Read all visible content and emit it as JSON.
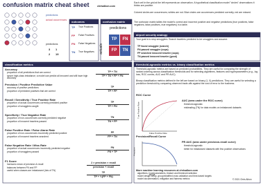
{
  "header": {
    "title": "confusion matrix cheat sheet",
    "site": "chrisalbon.com"
  },
  "intro": [
    "Each cell in the grid at the left represents an observation. A hypothetical classification model \"circles\" observations it thinks are positive.",
    "Colored circles are occurrences; whites are not. Blue circles are occurrences predicted correctly, red are missed.",
    "The confusion matrix tallies the model's correct and incorrect positive and negative predictions (true positives, false negatives, false positives, true negatives) in a table."
  ],
  "diagram": {
    "legend": [
      "predictions",
      "actual occurrences"
    ],
    "matrix_label": "predictions",
    "counts": [
      "3",
      "1",
      "2",
      "19"
    ]
  },
  "outcomes": {
    "title": "outcomes",
    "items": [
      {
        "abbr": "TP",
        "label": "True Positives"
      },
      {
        "abbr": "FP",
        "label": "False Positives"
      },
      {
        "abbr": "FN",
        "label": "False Negatives"
      },
      {
        "abbr": "TN",
        "label": "True Negatives"
      }
    ]
  },
  "confusion_matrix": {
    "title": "confusion matrix",
    "predictions": "predictions",
    "actuals": "actuals",
    "cells": [
      "TP",
      "FN",
      "FP",
      "TN"
    ]
  },
  "airport": {
    "title": "airport security analogy",
    "intro": "Your goal is to stop smugglers. Search travelers predicted to be smugglers and assume:",
    "items": [
      "TP found smuggler (search)",
      "FN passed smuggler (oops)",
      "FP searched innocent traveler (oops)",
      "TN passed innocent traveler (good)"
    ]
  },
  "metrics": {
    "title": "classification metrics",
    "rows": [
      {
        "name": "Accuracy",
        "bullets": [
          "proportion of all predictions that are correct",
          "ignore high-class imbalance; a model can predict all innocent and still have high accuracy"
        ],
        "numerator": "TP + TN",
        "denominator": "TP + TN + FP + FN"
      },
      {
        "name": "Precision / Positive Predictive Value",
        "bullets": [
          "accuracy of positive predictions",
          "proportion of predicted positives that are correct"
        ],
        "numerator": "TP",
        "denominator": "TP + FP"
      },
      {
        "name": "Recall / Sensitivity / True Positive Rate",
        "bullets": [
          "proportion of actual occurrences correctly predicted positive",
          "proportion of smugglers caught"
        ],
        "numerator": "TP",
        "denominator": "TP + FN"
      },
      {
        "name": "Specificity / True Negative Rate",
        "bullets": [
          "proportion of non-occurrences correctly predicted negative",
          "proportion of innocent travelers passed"
        ],
        "numerator": "TN",
        "denominator": "TN + FP"
      },
      {
        "name": "False Positive Rate / False Alarm Rate",
        "bullets": [
          "proportion of non-occurrences incorrectly predicted positive",
          "proportion of innocent travelers searched"
        ],
        "numerator": "FP",
        "denominator": "FP + TN"
      },
      {
        "name": "False Negative Rate / Miss Rate",
        "bullets": [
          "proportion of actual occurrences incorrectly predicted negative",
          "proportion of smugglers passed"
        ],
        "numerator": "FN",
        "denominator": "FN + TP"
      }
    ],
    "f1": {
      "name": "F1 Score",
      "bullets": [
        "harmonic mean of precision & recall",
        "balances between FN and FP",
        "useful when classes are imbalanced (lots of TN)"
      ],
      "formulas": [
        {
          "numerator": "2 × precision × recall",
          "denominator": "precision + recall"
        },
        {
          "numerator": "TP",
          "denominator": "TP + ½(FP + FN)"
        }
      ]
    }
  },
  "threshold": {
    "title": "threshold-agnostic metrics vs. binary classification metrics",
    "paragraphs": [
      "Threshold-agnostic metrics are based on predicted probabilities. They are useful for comparing the strength of ranked ordering across classification thresholds and for selecting algorithms, features and hyperparameters (e.g., log loss, ROC curves, AUC and PR AUC).",
      "Binary classification metrics defined in the left are based on binary (1, 0) predictions. They are useful for selecting a prediction threshold by comparing observed trade-offs against the cost of error to the business."
    ],
    "roc": {
      "title": "ROC Curve",
      "ylabel": "True Positive Rate",
      "xlabel": "False Positive Rate",
      "name": "AUC (area under the ROC curve)",
      "bullets": [
        "threshold-agnostic",
        "misleading (TN) for data models on imbalanced datasets"
      ]
    },
    "pr": {
      "title": "Precision/Recall Curve",
      "ylabel": "Precision",
      "xlabel": "Recall",
      "name": "PR AUC (area under precision-recall curve)",
      "bullets": [
        "threshold-agnostic",
        "better for imbalanced datasets with few positive observations"
      ]
    },
    "resources": {
      "title": "More machine learning resources at chrisalbon.com",
      "items": [
        "algorithms, hyperparameters, feature and threshold selection",
        "model design setup, group/stratified cross validation and time-based targets",
        "model documentation, mitigation and fairness metrics"
      ]
    },
    "copyright": "© 2021 Chris Albon"
  }
}
